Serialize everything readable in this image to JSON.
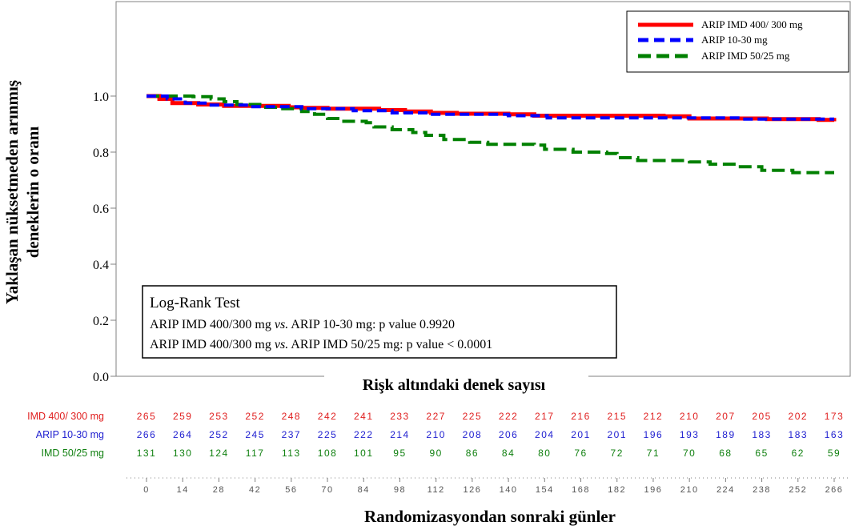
{
  "chart_data": {
    "type": "line",
    "title": "",
    "xlabel": "Randomizasyondan sonraki günler",
    "ylabel_lines": [
      "Yaklaşan nüksetmeden arınmış",
      "deneklerin o oranı"
    ],
    "xlim": [
      0,
      266
    ],
    "ylim": [
      0,
      1.12
    ],
    "yticks": [
      "0.0",
      "0.2",
      "0.4",
      "0.6",
      "0.8",
      "1.0"
    ],
    "xticks": [
      "0",
      "14",
      "28",
      "42",
      "56",
      "70",
      "84",
      "98",
      "112",
      "126",
      "140",
      "154",
      "168",
      "182",
      "196",
      "210",
      "224",
      "238",
      "252",
      "266"
    ],
    "legend_position": "top-right",
    "series": [
      {
        "name": "ARIP IMD 400/ 300 mg",
        "color": "#ff0000",
        "style": "solid",
        "points": [
          [
            0,
            1.0
          ],
          [
            5,
            0.99
          ],
          [
            10,
            0.975
          ],
          [
            20,
            0.97
          ],
          [
            30,
            0.965
          ],
          [
            40,
            0.965
          ],
          [
            55,
            0.96
          ],
          [
            60,
            0.958
          ],
          [
            70,
            0.955
          ],
          [
            90,
            0.95
          ],
          [
            100,
            0.945
          ],
          [
            110,
            0.94
          ],
          [
            120,
            0.937
          ],
          [
            140,
            0.935
          ],
          [
            150,
            0.93
          ],
          [
            200,
            0.928
          ],
          [
            210,
            0.92
          ],
          [
            240,
            0.918
          ],
          [
            260,
            0.915
          ],
          [
            266,
            0.91
          ]
        ]
      },
      {
        "name": "ARIP 10-30 mg",
        "color": "#0000ff",
        "style": "dashed",
        "points": [
          [
            0,
            1.0
          ],
          [
            8,
            0.99
          ],
          [
            15,
            0.975
          ],
          [
            25,
            0.968
          ],
          [
            40,
            0.962
          ],
          [
            60,
            0.955
          ],
          [
            80,
            0.948
          ],
          [
            95,
            0.94
          ],
          [
            110,
            0.935
          ],
          [
            140,
            0.93
          ],
          [
            155,
            0.922
          ],
          [
            200,
            0.922
          ],
          [
            230,
            0.918
          ],
          [
            266,
            0.918
          ]
        ]
      },
      {
        "name": "ARIP IMD 50/25 mg",
        "color": "#008000",
        "style": "dashed",
        "points": [
          [
            0,
            1.0
          ],
          [
            10,
            1.0
          ],
          [
            18,
            0.998
          ],
          [
            25,
            0.99
          ],
          [
            30,
            0.98
          ],
          [
            35,
            0.97
          ],
          [
            45,
            0.96
          ],
          [
            52,
            0.955
          ],
          [
            60,
            0.945
          ],
          [
            65,
            0.935
          ],
          [
            70,
            0.92
          ],
          [
            75,
            0.91
          ],
          [
            85,
            0.905
          ],
          [
            88,
            0.89
          ],
          [
            95,
            0.88
          ],
          [
            103,
            0.87
          ],
          [
            108,
            0.86
          ],
          [
            115,
            0.845
          ],
          [
            125,
            0.835
          ],
          [
            132,
            0.828
          ],
          [
            150,
            0.825
          ],
          [
            154,
            0.81
          ],
          [
            165,
            0.8
          ],
          [
            178,
            0.795
          ],
          [
            182,
            0.78
          ],
          [
            190,
            0.77
          ],
          [
            210,
            0.765
          ],
          [
            218,
            0.757
          ],
          [
            228,
            0.748
          ],
          [
            238,
            0.735
          ],
          [
            250,
            0.727
          ],
          [
            266,
            0.727
          ]
        ]
      }
    ]
  },
  "stats_box": {
    "title": "Log-Rank Test",
    "line1_a": "ARIP IMD 400/300 mg ",
    "line1_vs": "vs.",
    "line1_b": " ARIP 10-30 mg: p value 0.9920",
    "line2_a": "ARIP IMD 400/300 mg ",
    "line2_vs": "vs.",
    "line2_b": " ARIP IMD 50/25 mg: p value < 0.0001"
  },
  "risk_table": {
    "title": "Rişk altındaki denek sayısı",
    "rows": [
      {
        "label": "IMD 400/ 300 mg",
        "color": "#e02020",
        "values": [
          "265",
          "259",
          "253",
          "252",
          "248",
          "242",
          "241",
          "233",
          "227",
          "225",
          "222",
          "217",
          "216",
          "215",
          "212",
          "210",
          "207",
          "205",
          "202",
          "173"
        ]
      },
      {
        "label": "ARIP 10-30 mg",
        "color": "#2020d0",
        "values": [
          "266",
          "264",
          "252",
          "245",
          "237",
          "225",
          "222",
          "214",
          "210",
          "208",
          "206",
          "204",
          "201",
          "201",
          "196",
          "193",
          "189",
          "183",
          "183",
          "163"
        ]
      },
      {
        "label": "IMD 50/25 mg",
        "color": "#108010",
        "values": [
          "131",
          "130",
          "124",
          "117",
          "113",
          "108",
          "101",
          "95",
          "90",
          "86",
          "84",
          "80",
          "76",
          "72",
          "71",
          "70",
          "68",
          "65",
          "62",
          "59"
        ]
      }
    ]
  }
}
